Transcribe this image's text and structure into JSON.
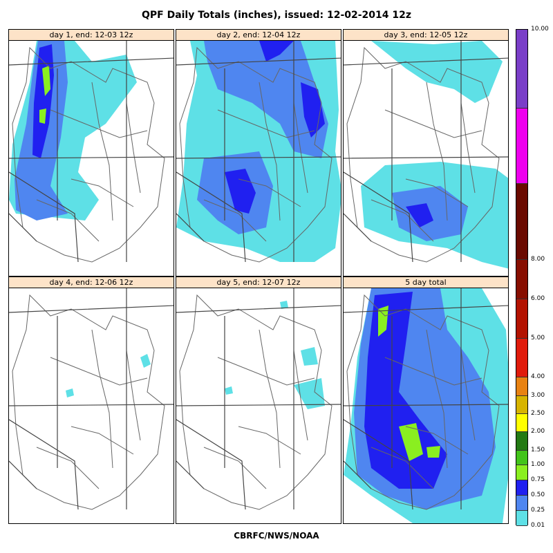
{
  "title": "QPF Daily Totals (inches),  issued: 12-02-2014 12z",
  "footer": "CBRFC/NWS/NOAA",
  "panels": [
    {
      "label": "day 1, end: 12-03 12z"
    },
    {
      "label": "day 2, end: 12-04 12z"
    },
    {
      "label": "day 3, end: 12-05 12z"
    },
    {
      "label": "day 4, end: 12-06 12z"
    },
    {
      "label": "day 5, end: 12-07 12z"
    },
    {
      "label": "5 day total"
    }
  ],
  "legend": {
    "labels": [
      "0.01",
      "0.25",
      "0.50",
      "0.75",
      "1.00",
      "1.50",
      "2.00",
      "2.50",
      "3.00",
      "4.00",
      "5.00",
      "6.00",
      "8.00",
      "10.00"
    ],
    "colors": [
      "#5ee0e6",
      "#4f86f0",
      "#2020f0",
      "#8aef20",
      "#42c41a",
      "#237a13",
      "#ffff00",
      "#d7b400",
      "#e88212",
      "#e01b0b",
      "#b31200",
      "#870e00",
      "#6a0a00",
      "#ee00ee",
      "#7a3ec8"
    ]
  },
  "precip_colors": {
    "light": "#5ee0e6",
    "moderate": "#4f86f0",
    "heavy": "#2020f0",
    "very_heavy": "#8aef20"
  }
}
